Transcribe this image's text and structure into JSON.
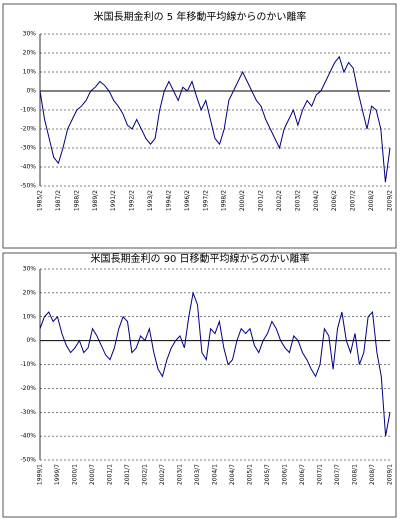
{
  "chart_data": [
    {
      "type": "line",
      "title": "米国長期金利の 5 年移動平均線からのかい離率",
      "categories": [
        "1985/2",
        null,
        null,
        null,
        "1987/2",
        null,
        null,
        null,
        "1988/2",
        null,
        null,
        null,
        "1989/2",
        null,
        null,
        null,
        "1991/2",
        null,
        null,
        null,
        "1992/2",
        null,
        null,
        null,
        "1993/2",
        null,
        null,
        null,
        "1994/2",
        null,
        null,
        null,
        "1996/2",
        null,
        null,
        null,
        "1997/2",
        null,
        null,
        null,
        "1998/2",
        null,
        null,
        null,
        "2000/2",
        null,
        null,
        null,
        "2001/2",
        null,
        null,
        null,
        "2002/2",
        null,
        null,
        null,
        "2003/2",
        null,
        null,
        null,
        "2004/2",
        null,
        null,
        null,
        "2006/2",
        null,
        null,
        null,
        "2007/2",
        null,
        null,
        null,
        "2008/2",
        null,
        null,
        null,
        "2009/2"
      ],
      "values": [
        0,
        -15,
        -25,
        -35,
        -38,
        -30,
        -20,
        -15,
        -10,
        -8,
        -5,
        0,
        2,
        5,
        3,
        0,
        -5,
        -8,
        -12,
        -18,
        -20,
        -15,
        -20,
        -25,
        -28,
        -25,
        -10,
        0,
        5,
        0,
        -5,
        2,
        0,
        5,
        -3,
        -10,
        -5,
        -15,
        -25,
        -28,
        -20,
        -5,
        0,
        5,
        10,
        5,
        0,
        -5,
        -8,
        -15,
        -20,
        -25,
        -30,
        -20,
        -15,
        -10,
        -18,
        -10,
        -5,
        -8,
        -2,
        0,
        5,
        10,
        15,
        18,
        10,
        15,
        12,
        0,
        -10,
        -20,
        -8,
        -10,
        -20,
        -48,
        -30
      ],
      "color": "#000080",
      "ylim": [
        -50,
        30
      ],
      "yticks": [
        {
          "value": 30,
          "label": "30%"
        },
        {
          "value": 20,
          "label": "20%"
        },
        {
          "value": 10,
          "label": "10%"
        },
        {
          "value": 0,
          "label": "0%"
        },
        {
          "value": -10,
          "label": "-10%"
        },
        {
          "value": -20,
          "label": "-20%"
        },
        {
          "value": -30,
          "label": "-30%"
        },
        {
          "value": -40,
          "label": "-40%"
        },
        {
          "value": -50,
          "label": "-50%"
        }
      ],
      "grid": true
    },
    {
      "type": "line",
      "title": "米国長期金利の 90 日移動平均線からのかい離率",
      "categories": [
        "1999/1",
        null,
        null,
        null,
        "1999/7",
        null,
        null,
        null,
        "2000/1",
        null,
        null,
        null,
        "2000/7",
        null,
        null,
        null,
        "2001/1",
        null,
        null,
        null,
        "2001/7",
        null,
        null,
        null,
        "2002/1",
        null,
        null,
        null,
        "2002/7",
        null,
        null,
        null,
        "2003/1",
        null,
        null,
        null,
        "2003/7",
        null,
        null,
        null,
        "2004/1",
        null,
        null,
        null,
        "2004/7",
        null,
        null,
        null,
        "2005/1",
        null,
        null,
        null,
        "2005/7",
        null,
        null,
        null,
        "2006/1",
        null,
        null,
        null,
        "2006/7",
        null,
        null,
        null,
        "2007/1",
        null,
        null,
        null,
        "2007/7",
        null,
        null,
        null,
        "2008/1",
        null,
        null,
        null,
        "2008/7",
        null,
        null,
        null,
        "2009/1"
      ],
      "values": [
        5,
        10,
        12,
        8,
        10,
        3,
        -2,
        -5,
        -3,
        0,
        -5,
        -3,
        5,
        2,
        -2,
        -6,
        -8,
        -3,
        5,
        10,
        8,
        -5,
        -3,
        2,
        0,
        5,
        -5,
        -12,
        -15,
        -8,
        -3,
        0,
        2,
        -3,
        10,
        20,
        15,
        -5,
        -8,
        5,
        3,
        8,
        -3,
        -10,
        -8,
        0,
        5,
        3,
        5,
        -2,
        -5,
        0,
        3,
        8,
        5,
        0,
        -3,
        -5,
        2,
        0,
        -5,
        -8,
        -12,
        -15,
        -10,
        5,
        2,
        -12,
        5,
        12,
        0,
        -5,
        3,
        -10,
        -5,
        10,
        12,
        -5,
        -15,
        -40,
        -30
      ],
      "color": "#000080",
      "ylim": [
        -50,
        30
      ],
      "yticks": [
        {
          "value": 30,
          "label": "30%"
        },
        {
          "value": 20,
          "label": "20%"
        },
        {
          "value": 10,
          "label": "10%"
        },
        {
          "value": 0,
          "label": "0%"
        },
        {
          "value": -10,
          "label": "-10%"
        },
        {
          "value": -20,
          "label": "-20%"
        },
        {
          "value": -30,
          "label": "-30%"
        },
        {
          "value": -40,
          "label": "-40%"
        },
        {
          "value": -50,
          "label": "-50%"
        }
      ],
      "grid": true
    }
  ]
}
